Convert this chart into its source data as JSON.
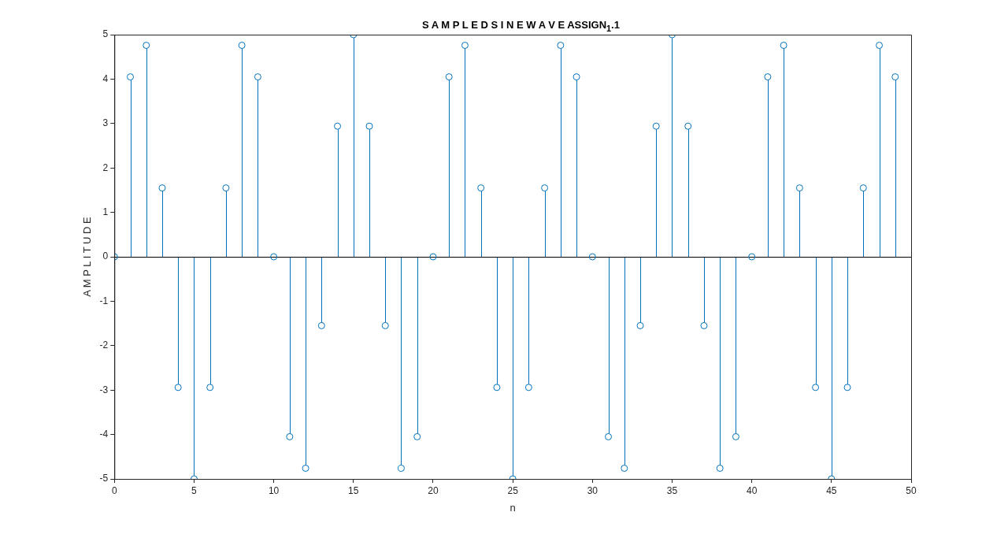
{
  "chart_data": {
    "type": "lollipop",
    "title": "S A M P L E D S I N E W A V E ASSIGN$_{1}$.1",
    "xlabel": "n",
    "ylabel": "A M P L I T U D E",
    "x": [
      0,
      1,
      2,
      3,
      4,
      5,
      6,
      7,
      8,
      9,
      10,
      11,
      12,
      13,
      14,
      15,
      16,
      17,
      18,
      19,
      20,
      21,
      22,
      23,
      24,
      25,
      26,
      27,
      28,
      29,
      30,
      31,
      32,
      33,
      34,
      35,
      36,
      37,
      38,
      39,
      40,
      41,
      42,
      43,
      44,
      45,
      46,
      47,
      48,
      49
    ],
    "series": [
      {
        "color": "#0072bd",
        "values": [
          0,
          4.05,
          4.76,
          1.55,
          -2.94,
          -5,
          -2.94,
          1.55,
          4.76,
          4.05,
          0,
          -4.05,
          -4.76,
          -1.55,
          2.94,
          5,
          2.94,
          -1.55,
          -4.76,
          -4.05,
          0,
          4.05,
          4.76,
          1.55,
          -2.94,
          -5,
          -2.94,
          1.55,
          4.76,
          4.05,
          0,
          -4.05,
          -4.76,
          -1.55,
          2.94,
          5,
          2.94,
          -1.55,
          -4.76,
          -4.05,
          0,
          4.05,
          4.76,
          1.55,
          -2.94,
          -5,
          -2.94,
          1.55,
          4.76,
          4.05
        ]
      }
    ],
    "xlim": [
      0,
      50
    ],
    "xticks": [
      0,
      5,
      10,
      15,
      20,
      25,
      30,
      35,
      40,
      45,
      50
    ],
    "ylim": [
      -5,
      5
    ],
    "yticks": [
      -5,
      -4,
      -3,
      -2,
      -1,
      0,
      1,
      2,
      3,
      4,
      5
    ],
    "ref_lines": [
      {
        "axis": "y",
        "value": 0,
        "color": "#000000"
      }
    ],
    "grid": false,
    "legend": false,
    "marker": "circle"
  }
}
